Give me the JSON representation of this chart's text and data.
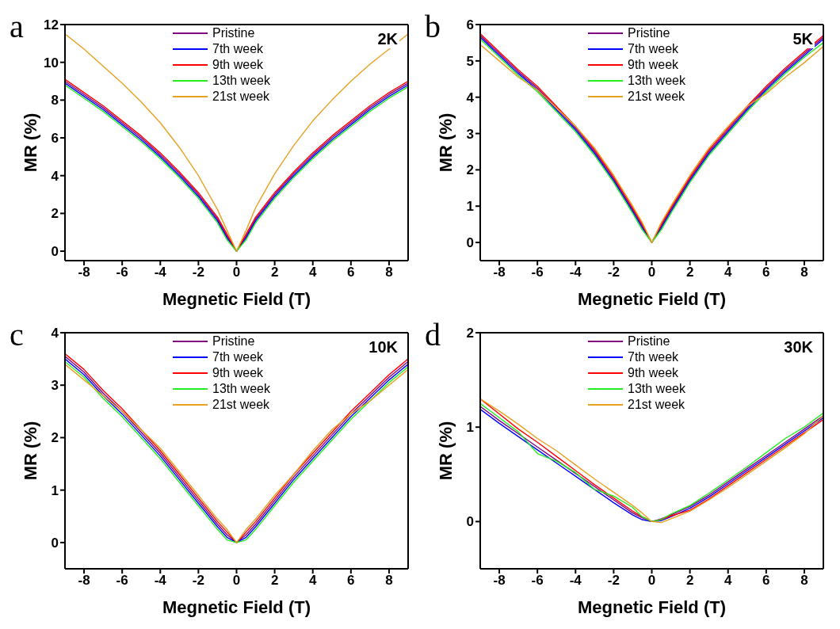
{
  "chart_data": [
    {
      "type": "line",
      "title": "a",
      "annotations": [
        "2K"
      ],
      "xlabel": "Megnetic Field (T)",
      "ylabel": "MR (%)",
      "xlim": [
        -9,
        9
      ],
      "xticks": [
        -8,
        -6,
        -4,
        -2,
        0,
        2,
        4,
        6,
        8
      ],
      "ylim": [
        -0.5,
        12
      ],
      "yticks": [
        0,
        2,
        4,
        6,
        8,
        10,
        12
      ],
      "legend": "top",
      "marker": "none",
      "line_style": "solid",
      "x": [
        -9,
        -8,
        -7,
        -6,
        -5,
        -4,
        -3,
        -2,
        -1,
        -0.5,
        0,
        0.5,
        1,
        2,
        3,
        4,
        5,
        6,
        7,
        8,
        9
      ],
      "series": [
        {
          "name": "Pristine",
          "color": "#800080",
          "values": [
            9.0,
            8.3,
            7.6,
            6.8,
            6.0,
            5.1,
            4.1,
            3.0,
            1.7,
            0.8,
            0,
            0.8,
            1.7,
            3.0,
            4.1,
            5.1,
            6.0,
            6.8,
            7.6,
            8.3,
            8.9
          ]
        },
        {
          "name": "7th week",
          "color": "#0000ff",
          "values": [
            8.9,
            8.2,
            7.5,
            6.7,
            5.9,
            5.0,
            4.0,
            2.9,
            1.6,
            0.7,
            0,
            0.7,
            1.6,
            2.9,
            4.0,
            5.0,
            5.9,
            6.7,
            7.5,
            8.2,
            8.8
          ]
        },
        {
          "name": "9th week",
          "color": "#ff0000",
          "values": [
            9.1,
            8.4,
            7.7,
            6.9,
            6.1,
            5.2,
            4.2,
            3.1,
            1.8,
            0.9,
            0,
            0.9,
            1.8,
            3.1,
            4.2,
            5.2,
            6.1,
            6.9,
            7.7,
            8.4,
            9.0
          ]
        },
        {
          "name": "13th week",
          "color": "#22ee22",
          "values": [
            8.8,
            8.1,
            7.4,
            6.6,
            5.8,
            4.9,
            3.9,
            2.8,
            1.5,
            0.6,
            0,
            0.6,
            1.5,
            2.8,
            3.9,
            4.9,
            5.8,
            6.6,
            7.4,
            8.1,
            8.7
          ]
        },
        {
          "name": "21st week",
          "color": "#e8a020",
          "values": [
            11.5,
            10.7,
            9.8,
            8.9,
            7.9,
            6.8,
            5.5,
            4.0,
            2.2,
            1.1,
            0,
            1.1,
            2.3,
            4.1,
            5.6,
            6.9,
            8.0,
            9.0,
            9.9,
            10.7,
            11.5
          ]
        }
      ]
    },
    {
      "type": "line",
      "title": "b",
      "annotations": [
        "5K"
      ],
      "xlabel": "Megnetic Field (T)",
      "ylabel": "MR (%)",
      "xlim": [
        -9,
        9
      ],
      "xticks": [
        -8,
        -6,
        -4,
        -2,
        0,
        2,
        4,
        6,
        8
      ],
      "ylim": [
        -0.5,
        6
      ],
      "yticks": [
        0,
        1,
        2,
        3,
        4,
        5,
        6
      ],
      "legend": "top",
      "marker": "none",
      "line_style": "solid",
      "x": [
        -9,
        -8,
        -7,
        -6,
        -5,
        -4,
        -3,
        -2,
        -1,
        -0.5,
        0,
        0.5,
        1,
        2,
        3,
        4,
        5,
        6,
        7,
        8,
        9
      ],
      "series": [
        {
          "name": "Pristine",
          "color": "#800080",
          "values": [
            5.7,
            5.2,
            4.7,
            4.25,
            3.7,
            3.15,
            2.5,
            1.75,
            0.9,
            0.45,
            0,
            0.45,
            0.9,
            1.75,
            2.5,
            3.1,
            3.7,
            4.25,
            4.75,
            5.2,
            5.65
          ]
        },
        {
          "name": "7th week",
          "color": "#0000ff",
          "values": [
            5.65,
            5.15,
            4.65,
            4.2,
            3.65,
            3.1,
            2.45,
            1.7,
            0.85,
            0.4,
            0,
            0.4,
            0.85,
            1.7,
            2.45,
            3.05,
            3.65,
            4.2,
            4.7,
            5.15,
            5.6
          ]
        },
        {
          "name": "9th week",
          "color": "#ff0000",
          "values": [
            5.75,
            5.25,
            4.75,
            4.3,
            3.75,
            3.2,
            2.55,
            1.8,
            0.95,
            0.5,
            0,
            0.5,
            0.95,
            1.8,
            2.55,
            3.15,
            3.75,
            4.3,
            4.8,
            5.25,
            5.7
          ]
        },
        {
          "name": "13th week",
          "color": "#22ee22",
          "values": [
            5.6,
            5.1,
            4.6,
            4.15,
            3.6,
            3.05,
            2.4,
            1.65,
            0.8,
            0.35,
            0,
            0.35,
            0.8,
            1.65,
            2.4,
            3.0,
            3.6,
            4.15,
            4.65,
            5.1,
            5.5
          ]
        },
        {
          "name": "21st week",
          "color": "#e8a020",
          "values": [
            5.45,
            5.0,
            4.55,
            4.2,
            3.7,
            3.2,
            2.6,
            1.85,
            1.0,
            0.55,
            0,
            0.55,
            1.0,
            1.85,
            2.6,
            3.2,
            3.75,
            4.1,
            4.55,
            4.95,
            5.4
          ]
        }
      ]
    },
    {
      "type": "line",
      "title": "c",
      "annotations": [
        "10K"
      ],
      "xlabel": "Megnetic Field (T)",
      "ylabel": "MR (%)",
      "xlim": [
        -9,
        9
      ],
      "xticks": [
        -8,
        -6,
        -4,
        -2,
        0,
        2,
        4,
        6,
        8
      ],
      "ylim": [
        -0.5,
        4
      ],
      "yticks": [
        0,
        1,
        2,
        3,
        4
      ],
      "legend": "top",
      "marker": "none",
      "line_style": "solid",
      "x": [
        -9,
        -8,
        -7,
        -6,
        -5,
        -4,
        -3,
        -2,
        -1,
        -0.5,
        0,
        0.5,
        1,
        2,
        3,
        4,
        5,
        6,
        7,
        8,
        9
      ],
      "series": [
        {
          "name": "Pristine",
          "color": "#800080",
          "values": [
            3.55,
            3.25,
            2.85,
            2.5,
            2.1,
            1.7,
            1.25,
            0.8,
            0.35,
            0.15,
            0,
            0.15,
            0.35,
            0.8,
            1.25,
            1.65,
            2.05,
            2.45,
            2.8,
            3.15,
            3.45
          ]
        },
        {
          "name": "7th week",
          "color": "#0000ff",
          "values": [
            3.5,
            3.2,
            2.8,
            2.45,
            2.05,
            1.65,
            1.2,
            0.75,
            0.3,
            0.1,
            0,
            0.1,
            0.3,
            0.75,
            1.2,
            1.6,
            2.0,
            2.4,
            2.75,
            3.1,
            3.4
          ]
        },
        {
          "name": "9th week",
          "color": "#ff0000",
          "values": [
            3.6,
            3.3,
            2.9,
            2.55,
            2.15,
            1.75,
            1.3,
            0.85,
            0.4,
            0.2,
            0,
            0.2,
            0.4,
            0.85,
            1.3,
            1.7,
            2.1,
            2.5,
            2.85,
            3.2,
            3.5
          ]
        },
        {
          "name": "13th week",
          "color": "#22ee22",
          "values": [
            3.45,
            3.15,
            2.75,
            2.4,
            2.0,
            1.6,
            1.15,
            0.7,
            0.25,
            0.05,
            0,
            0.05,
            0.25,
            0.7,
            1.15,
            1.55,
            1.95,
            2.35,
            2.7,
            3.05,
            3.35
          ]
        },
        {
          "name": "21st week",
          "color": "#e8a020",
          "values": [
            3.4,
            3.1,
            2.8,
            2.5,
            2.15,
            1.8,
            1.35,
            0.9,
            0.45,
            0.25,
            0,
            0.25,
            0.45,
            0.9,
            1.3,
            1.75,
            2.15,
            2.45,
            2.7,
            3.0,
            3.3
          ]
        }
      ]
    },
    {
      "type": "line",
      "title": "d",
      "annotations": [
        "30K"
      ],
      "xlabel": "Megnetic Field (T)",
      "ylabel": "MR (%)",
      "xlim": [
        -9,
        9
      ],
      "xticks": [
        -8,
        -6,
        -4,
        -2,
        0,
        2,
        4,
        6,
        8
      ],
      "ylim": [
        -0.5,
        2
      ],
      "yticks": [
        0,
        1,
        2
      ],
      "legend": "top",
      "marker": "none",
      "line_style": "solid",
      "x": [
        -9,
        -8,
        -7,
        -6,
        -5,
        -4,
        -3,
        -2,
        -1,
        -0.5,
        0,
        0.5,
        1,
        2,
        3,
        4,
        5,
        6,
        7,
        8,
        9
      ],
      "series": [
        {
          "name": "Pristine",
          "color": "#800080",
          "values": [
            1.22,
            1.07,
            0.93,
            0.79,
            0.65,
            0.51,
            0.37,
            0.23,
            0.09,
            0.04,
            0,
            0.03,
            0.07,
            0.16,
            0.28,
            0.42,
            0.56,
            0.7,
            0.84,
            0.98,
            1.12
          ]
        },
        {
          "name": "7th week",
          "color": "#0000ff",
          "values": [
            1.19,
            1.04,
            0.9,
            0.76,
            0.62,
            0.48,
            0.34,
            0.2,
            0.07,
            0.02,
            0,
            0.01,
            0.05,
            0.14,
            0.26,
            0.4,
            0.54,
            0.68,
            0.82,
            0.96,
            1.1
          ]
        },
        {
          "name": "9th week",
          "color": "#ff0000",
          "values": [
            1.3,
            1.14,
            0.98,
            0.84,
            0.69,
            0.54,
            0.39,
            0.25,
            0.11,
            0.05,
            0,
            0.02,
            0.06,
            0.12,
            0.24,
            0.38,
            0.52,
            0.66,
            0.8,
            0.94,
            1.08
          ]
        },
        {
          "name": "13th week",
          "color": "#22ee22",
          "values": [
            1.25,
            1.1,
            0.95,
            0.72,
            0.64,
            0.52,
            0.34,
            0.27,
            0.15,
            0.05,
            0,
            0.02,
            0.08,
            0.17,
            0.3,
            0.44,
            0.58,
            0.73,
            0.88,
            1.0,
            1.15
          ]
        },
        {
          "name": "21st week",
          "color": "#e8a020",
          "values": [
            1.3,
            1.17,
            1.03,
            0.88,
            0.75,
            0.6,
            0.45,
            0.31,
            0.17,
            0.09,
            0,
            -0.01,
            0.03,
            0.11,
            0.23,
            0.36,
            0.5,
            0.64,
            0.78,
            0.93,
            1.12
          ]
        }
      ]
    }
  ]
}
